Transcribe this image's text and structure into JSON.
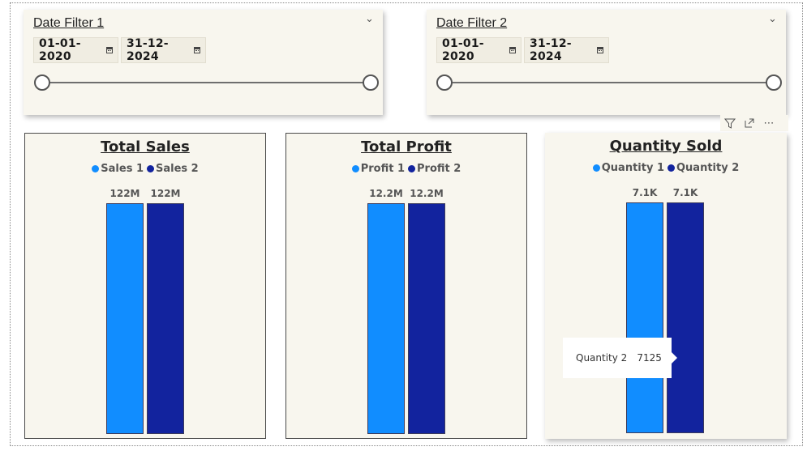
{
  "filters": [
    {
      "title": "Date Filter 1",
      "start": "01-01-2020",
      "end": "31-12-2024"
    },
    {
      "title": "Date Filter 2",
      "start": "01-01-2020",
      "end": "31-12-2024"
    }
  ],
  "visual_header": {
    "filter_icon": "filter-icon",
    "focus_icon": "focus-mode-icon",
    "more_icon": "more-options-icon"
  },
  "colors": {
    "series_1": "#118dff",
    "series_2": "#12239e",
    "card_bg": "#f8f6ee"
  },
  "chart_data": [
    {
      "type": "bar",
      "title": "Total Sales",
      "categories": [
        ""
      ],
      "series": [
        {
          "name": "Sales 1",
          "values": [
            122000000
          ],
          "label": "122M"
        },
        {
          "name": "Sales 2",
          "values": [
            122000000
          ],
          "label": "122M"
        }
      ],
      "legend": "top-center",
      "grid": false
    },
    {
      "type": "bar",
      "title": "Total Profit",
      "categories": [
        ""
      ],
      "series": [
        {
          "name": "Profit 1",
          "values": [
            12200000
          ],
          "label": "12.2M"
        },
        {
          "name": "Profit 2",
          "values": [
            12200000
          ],
          "label": "12.2M"
        }
      ],
      "legend": "top-center",
      "grid": false
    },
    {
      "type": "bar",
      "title": "Quantity Sold",
      "categories": [
        ""
      ],
      "series": [
        {
          "name": "Quantity 1",
          "values": [
            7125
          ],
          "label": "7.1K"
        },
        {
          "name": "Quantity 2",
          "values": [
            7125
          ],
          "label": "7.1K"
        }
      ],
      "legend": "top-center",
      "grid": false
    }
  ],
  "tooltip": {
    "label": "Quantity 2",
    "value": "7125"
  }
}
